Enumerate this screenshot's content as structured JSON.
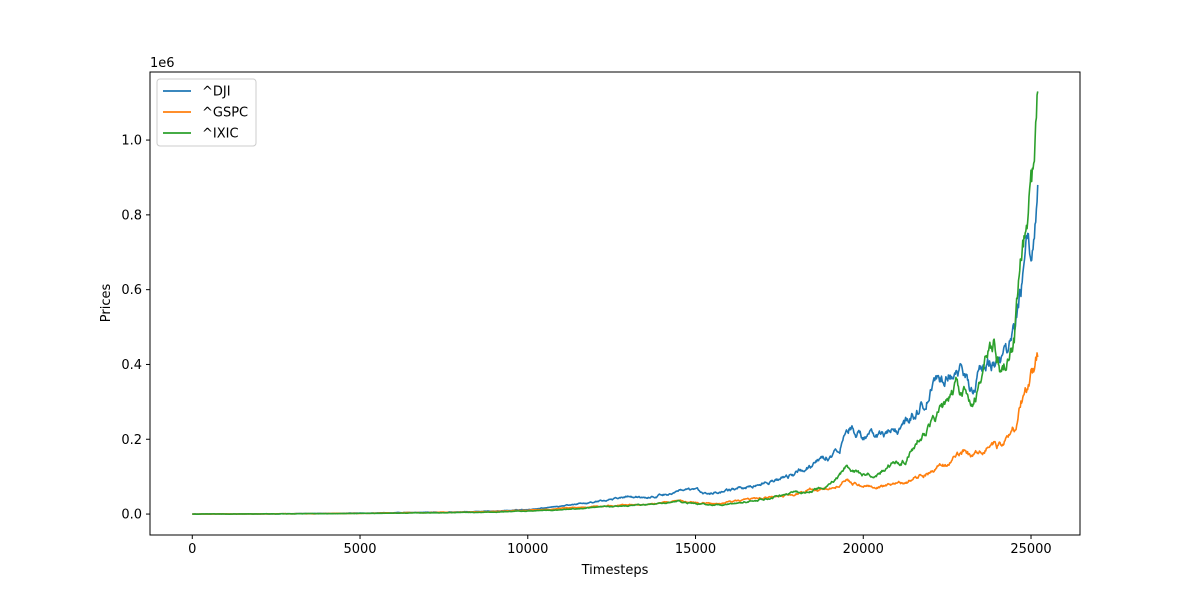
{
  "chart_data": {
    "type": "line",
    "xlabel": "Timesteps",
    "ylabel": "Prices",
    "y_offset_label": "1e6",
    "xlim": [
      -1260,
      26460
    ],
    "ylim": [
      -56000,
      1182000
    ],
    "xticks": [
      0,
      5000,
      10000,
      15000,
      20000,
      25000
    ],
    "xtick_labels": [
      "0",
      "5000",
      "10000",
      "15000",
      "20000",
      "25000"
    ],
    "yticks": [
      0,
      200000,
      400000,
      600000,
      800000,
      1000000
    ],
    "ytick_labels": [
      "0.0",
      "0.2",
      "0.4",
      "0.6",
      "0.8",
      "1.0"
    ],
    "grid": false,
    "legend_position": "upper-left",
    "series": [
      {
        "name": "^DJI",
        "color": "#1f77b4",
        "x": [
          0,
          2000,
          4000,
          6000,
          8000,
          9000,
          10000,
          11000,
          11500,
          12000,
          12500,
          13000,
          13500,
          14000,
          14500,
          15000,
          15500,
          16000,
          16500,
          17000,
          17500,
          18000,
          18500,
          19000,
          19300,
          19500,
          19700,
          20000,
          20500,
          21000,
          21300,
          21500,
          21800,
          22000,
          22200,
          22500,
          22800,
          23000,
          23200,
          23500,
          23800,
          24000,
          24300,
          24500,
          24700,
          24900,
          25000,
          25100,
          25200
        ],
        "y": [
          0,
          500,
          1500,
          3500,
          5500,
          8000,
          12000,
          20000,
          27000,
          32000,
          40000,
          47000,
          44000,
          52000,
          60000,
          63000,
          55000,
          62000,
          72000,
          82000,
          95000,
          110000,
          130000,
          160000,
          180000,
          255000,
          230000,
          205000,
          210000,
          220000,
          245000,
          270000,
          300000,
          330000,
          355000,
          380000,
          400000,
          370000,
          335000,
          380000,
          400000,
          410000,
          420000,
          470000,
          600000,
          700000,
          650000,
          740000,
          880000
        ]
      },
      {
        "name": "^GSPC",
        "color": "#ff7f0e",
        "x": [
          0,
          2000,
          4000,
          6000,
          8000,
          9000,
          10000,
          11000,
          12000,
          13000,
          14000,
          14500,
          15000,
          15500,
          16000,
          16500,
          17000,
          17500,
          18000,
          18500,
          19000,
          19300,
          19500,
          19700,
          20000,
          20500,
          21000,
          21300,
          21500,
          22000,
          22500,
          22800,
          23000,
          23200,
          23500,
          23800,
          24000,
          24300,
          24500,
          24700,
          24900,
          25000,
          25100,
          25200
        ],
        "y": [
          0,
          400,
          1200,
          3000,
          5000,
          7000,
          10000,
          15000,
          20000,
          24000,
          30000,
          37000,
          32000,
          28000,
          32000,
          37000,
          42000,
          47000,
          55000,
          65000,
          70000,
          80000,
          92000,
          85000,
          75000,
          77000,
          78000,
          85000,
          95000,
          115000,
          135000,
          150000,
          165000,
          155000,
          160000,
          190000,
          185000,
          200000,
          230000,
          300000,
          330000,
          360000,
          375000,
          420000
        ]
      },
      {
        "name": "^IXIC",
        "color": "#2ca02c",
        "x": [
          0,
          2000,
          4000,
          6000,
          8000,
          9000,
          10000,
          11000,
          12000,
          13000,
          14000,
          14500,
          15000,
          15500,
          16000,
          16500,
          17000,
          17500,
          18000,
          18500,
          19000,
          19300,
          19500,
          19700,
          20000,
          20500,
          21000,
          21300,
          21500,
          22000,
          22500,
          22800,
          23000,
          23200,
          23500,
          23700,
          23900,
          24100,
          24300,
          24500,
          24700,
          24900,
          25000,
          25100,
          25200
        ],
        "y": [
          0,
          300,
          1000,
          2500,
          4000,
          5500,
          8000,
          12000,
          18000,
          23000,
          27000,
          35000,
          28000,
          25000,
          27000,
          32000,
          40000,
          48000,
          57000,
          65000,
          78000,
          100000,
          130000,
          110000,
          105000,
          115000,
          140000,
          150000,
          185000,
          240000,
          300000,
          340000,
          320000,
          280000,
          340000,
          430000,
          460000,
          380000,
          420000,
          470000,
          640000,
          760000,
          860000,
          900000,
          1130000
        ]
      }
    ]
  }
}
